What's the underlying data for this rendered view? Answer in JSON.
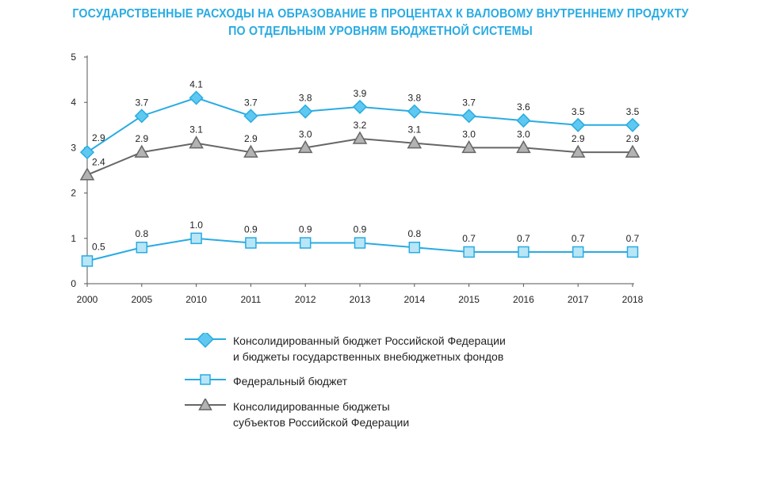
{
  "title_line1": "ГОСУДАРСТВЕННЫЕ РАСХОДЫ НА ОБРАЗОВАНИЕ В ПРОЦЕНТАХ К ВАЛОВОМУ ВНУТРЕННЕМУ ПРОДУКТУ",
  "title_line2": "ПО ОТДЕЛЬНЫМ УРОВНЯМ БЮДЖЕТНОЙ СИСТЕМЫ",
  "colors": {
    "consolidated": "#29abe2",
    "federal": "#29abe2",
    "regional": "#666666",
    "consolidated_fill": "#5ec8f0",
    "federal_fill": "#b8e6f7",
    "regional_fill": "#b3b3b3"
  },
  "chart_data": {
    "type": "line",
    "title": "ГОСУДАРСТВЕННЫЕ РАСХОДЫ НА ОБРАЗОВАНИЕ В ПРОЦЕНТАХ К ВАЛОВОМУ ВНУТРЕННЕМУ ПРОДУКТУ ПО ОТДЕЛЬНЫМ УРОВНЯМ БЮДЖЕТНОЙ СИСТЕМЫ",
    "categories": [
      "2000",
      "2005",
      "2010",
      "2011",
      "2012",
      "2013",
      "2014",
      "2015",
      "2016",
      "2017",
      "2018"
    ],
    "ylim": [
      0,
      5
    ],
    "yticks": [
      0,
      1,
      2,
      3,
      4,
      5
    ],
    "grid": false,
    "legend_position": "bottom",
    "series": [
      {
        "key": "consolidated",
        "marker": "diamond",
        "name": "Консолидированный бюджет Российской Федерации\nи бюджеты государственных внебюджетных фондов",
        "values": [
          2.9,
          3.7,
          4.1,
          3.7,
          3.8,
          3.9,
          3.8,
          3.7,
          3.6,
          3.5,
          3.5
        ],
        "labels": [
          "2.9",
          "3.7",
          "4.1",
          "3.7",
          "3.8",
          "3.9",
          "3.8",
          "3.7",
          "3.6",
          "3.5",
          "3.5"
        ]
      },
      {
        "key": "federal",
        "marker": "square",
        "name": "Федеральный бюджет",
        "values": [
          0.5,
          0.8,
          1.0,
          0.9,
          0.9,
          0.9,
          0.8,
          0.7,
          0.7,
          0.7,
          0.7
        ],
        "labels": [
          "0.5",
          "0.8",
          "1.0",
          "0.9",
          "0.9",
          "0.9",
          "0.8",
          "0.7",
          "0.7",
          "0.7",
          "0.7"
        ]
      },
      {
        "key": "regional",
        "marker": "triangle",
        "name": "Консолидированные бюджеты\nсубъектов Российской Федерации",
        "values": [
          2.4,
          2.9,
          3.1,
          2.9,
          3.0,
          3.2,
          3.1,
          3.0,
          3.0,
          2.9,
          2.9
        ],
        "labels": [
          "2.4",
          "2.9",
          "3.1",
          "2.9",
          "3.0",
          "3.2",
          "3.1",
          "3.0",
          "3.0",
          "2.9",
          "2.9"
        ]
      }
    ]
  }
}
